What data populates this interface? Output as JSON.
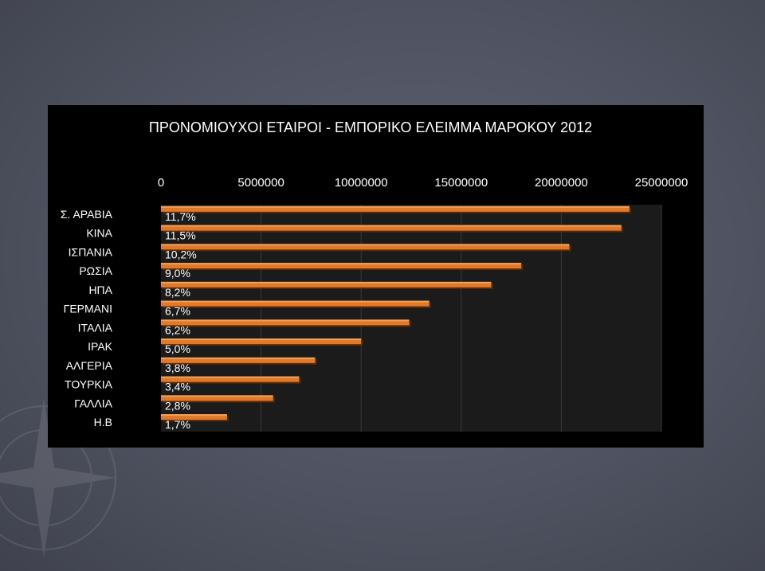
{
  "chart_data": {
    "type": "bar",
    "orientation": "horizontal",
    "title": "ΠΡΟΝΟΜΙΟΥΧΟΙ ΕΤΑΙΡΟΙ - ΕΜΠΟΡΙΚΟ ΕΛΕΙΜΜΑ  ΜΑΡΟΚΟΥ 2012",
    "categories": [
      "Σ. ΑΡΑΒΙΑ",
      "ΚΙΝΑ",
      "ΙΣΠΑΝΙΑ",
      "ΡΩΣΙΑ",
      "ΗΠΑ",
      "ΓΕΡΜΑΝΙ",
      "ΙΤΑΛΙΑ",
      "ΙΡΑΚ",
      "ΑΛΓΕΡΙΑ",
      "ΤΟΥΡΚΙΑ",
      "ΓΑΛΛΙΑ",
      "Η.Β"
    ],
    "values": [
      23400000,
      23000000,
      20400000,
      18000000,
      16500000,
      13400000,
      12400000,
      10000000,
      7700000,
      6900000,
      5600000,
      3300000
    ],
    "data_labels": [
      "11,7%",
      "11,5%",
      "10,2%",
      "9,0%",
      "8,2%",
      "6,7%",
      "6,2%",
      "5,0%",
      "3,8%",
      "3,4%",
      "2,8%",
      "1,7%"
    ],
    "x_ticks": [
      0,
      5000000,
      10000000,
      15000000,
      20000000,
      25000000
    ],
    "x_tick_labels": [
      "0",
      "5000000",
      "10000000",
      "15000000",
      "20000000",
      "25000000"
    ],
    "xlim": [
      0,
      25000000
    ],
    "x_axis_position": "top",
    "grid": true,
    "legend": "none",
    "colors": {
      "bar": "#e07a2a",
      "bar_highlight": "#f4a055",
      "bar_shadow": "#5a2a08",
      "plot_bg": "#1b1b1b",
      "panel_bg": "#000000",
      "grid": "#3a3a3a",
      "text": "#ffffff"
    }
  }
}
